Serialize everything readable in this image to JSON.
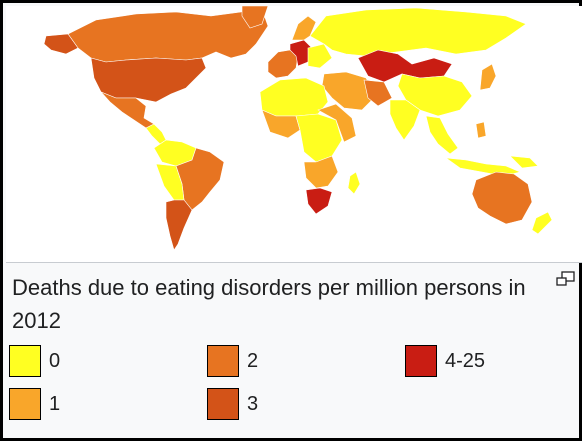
{
  "caption": "Deaths due to eating disorders per million persons in 2012",
  "legend": [
    {
      "label": "0",
      "color": "#ffff22"
    },
    {
      "label": "1",
      "color": "#f9a62a"
    },
    {
      "label": "2",
      "color": "#e77421"
    },
    {
      "label": "3",
      "color": "#d35318"
    },
    {
      "label": "4-25",
      "color": "#c91d13"
    }
  ],
  "icons": {
    "enlarge": "magnify-clip-icon"
  },
  "colors": {
    "border": "#000000",
    "ocean": "#ffffff",
    "caption_bg": "#f8f9fa"
  }
}
